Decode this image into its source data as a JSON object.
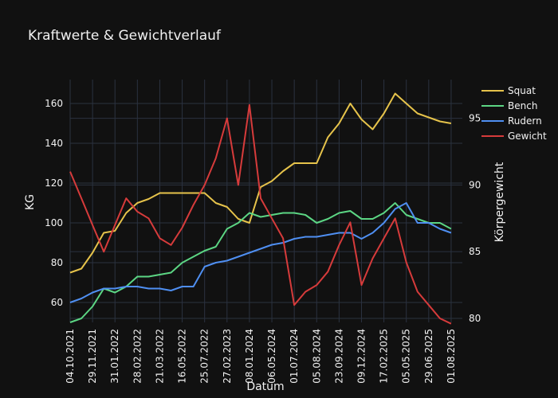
{
  "chart_data": {
    "type": "line",
    "title": "Kraftwerte & Gewichtverlauf",
    "xlabel": "Datum",
    "ylabel": "KG",
    "y2label": "Körpergewicht",
    "ylim": [
      50,
      172
    ],
    "y2lim": [
      79.7,
      97.9
    ],
    "yticks": [
      60,
      80,
      100,
      120,
      140,
      160
    ],
    "y2ticks": [
      80,
      85,
      90,
      95
    ],
    "xtick_labels": [
      "04.10.2021",
      "29.11.2021",
      "31.01.2022",
      "28.02.2022",
      "21.03.2022",
      "16.05.2022",
      "25.07.2022",
      "27.02.2023",
      "08.01.2024",
      "06.05.2024",
      "01.07.2024",
      "05.08.2024",
      "23.09.2024",
      "09.12.2024",
      "17.02.2025",
      "05.05.2025",
      "29.06.2025",
      "01.08.2025"
    ],
    "x_positions": [
      0,
      2,
      4,
      6,
      8,
      10,
      12,
      14,
      16,
      18,
      20,
      22,
      24,
      26,
      28,
      30,
      32,
      34
    ],
    "x_range": [
      0,
      35
    ],
    "legend_position": "top-right",
    "grid": true,
    "series": [
      {
        "name": "Squat",
        "color": "#e6c34b",
        "axis": "y",
        "x": [
          0,
          1,
          2,
          3,
          4,
          5,
          6,
          7,
          8,
          9,
          10,
          11,
          12,
          13,
          14,
          15,
          16,
          17,
          18,
          19,
          20,
          21,
          22,
          23,
          24,
          25,
          26,
          27,
          28,
          29,
          30,
          31,
          32,
          33,
          34
        ],
        "values": [
          75,
          77,
          85,
          95,
          96,
          105,
          110,
          112,
          115,
          115,
          115,
          115,
          115,
          110,
          108,
          102,
          100,
          118,
          121,
          126,
          130,
          130,
          130,
          143,
          150,
          160,
          152,
          147,
          155,
          165,
          160,
          155,
          153,
          151,
          150
        ]
      },
      {
        "name": "Bench",
        "color": "#5cd684",
        "axis": "y",
        "x": [
          0,
          1,
          2,
          3,
          4,
          5,
          6,
          7,
          8,
          9,
          10,
          11,
          12,
          13,
          14,
          15,
          16,
          17,
          18,
          19,
          20,
          21,
          22,
          23,
          24,
          25,
          26,
          27,
          28,
          29,
          30,
          31,
          32,
          33,
          34
        ],
        "values": [
          50,
          52,
          58,
          67,
          65,
          68,
          73,
          73,
          74,
          75,
          80,
          83,
          86,
          88,
          97,
          100,
          105,
          103,
          104,
          105,
          105,
          104,
          100,
          102,
          105,
          106,
          102,
          102,
          105,
          110,
          104,
          102,
          100,
          100,
          97
        ]
      },
      {
        "name": "Rudern",
        "color": "#4f8ff2",
        "axis": "y",
        "x": [
          0,
          1,
          2,
          3,
          4,
          5,
          6,
          7,
          8,
          9,
          10,
          11,
          12,
          13,
          14,
          15,
          16,
          17,
          18,
          19,
          20,
          21,
          22,
          23,
          24,
          25,
          26,
          27,
          28,
          29,
          30,
          31,
          32,
          33,
          34
        ],
        "values": [
          60,
          62,
          65,
          67,
          67,
          68,
          68,
          67,
          67,
          66,
          68,
          68,
          78,
          80,
          81,
          83,
          85,
          87,
          89,
          90,
          92,
          93,
          93,
          94,
          95,
          95,
          92,
          95,
          100,
          107,
          110,
          100,
          100,
          97,
          95
        ]
      },
      {
        "name": "Gewicht",
        "color": "#d63b3b",
        "axis": "y2",
        "x": [
          0,
          1,
          2,
          3,
          4,
          5,
          6,
          7,
          8,
          9,
          10,
          11,
          12,
          13,
          14,
          15,
          16,
          17,
          18,
          19,
          20,
          21,
          22,
          23,
          24,
          25,
          26,
          27,
          28,
          29,
          30,
          31,
          32,
          33,
          34
        ],
        "values": [
          91,
          89,
          87,
          85,
          87,
          89,
          88,
          87.5,
          86,
          85.5,
          86.8,
          88.5,
          90,
          92,
          95,
          90,
          96,
          89,
          87.5,
          86,
          81,
          82,
          82.5,
          83.5,
          85.5,
          87.2,
          82.5,
          84.5,
          86,
          87.5,
          84.2,
          82,
          81,
          80,
          79.6
        ]
      }
    ]
  }
}
